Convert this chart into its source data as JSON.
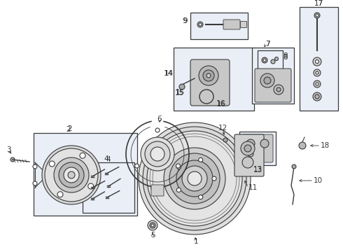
{
  "bg_color": "#ffffff",
  "line_color": "#3a3a3a",
  "box_bg": "#e8eef5",
  "part_fill": "#d4d4d4",
  "part_fill2": "#c0c0c0",
  "part_stroke": "#3a3a3a"
}
